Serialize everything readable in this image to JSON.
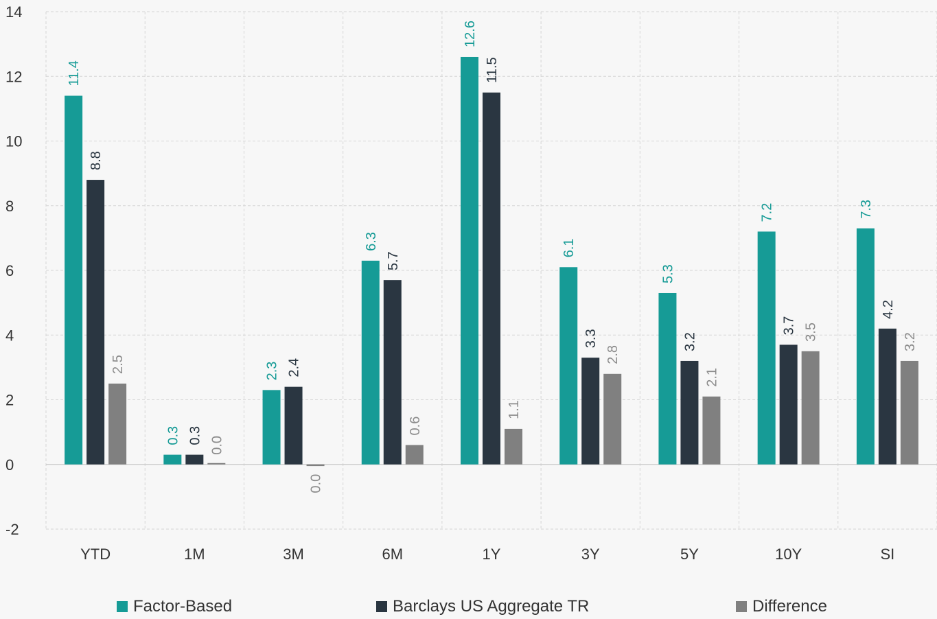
{
  "chart_data": {
    "type": "bar",
    "title": "",
    "xlabel": "",
    "ylabel": "",
    "ylim": [
      -2,
      14
    ],
    "yticks": [
      -2,
      0,
      2,
      4,
      6,
      8,
      10,
      12,
      14
    ],
    "grid": true,
    "legend_position": "bottom",
    "categories": [
      "YTD",
      "1M",
      "3M",
      "6M",
      "1Y",
      "3Y",
      "5Y",
      "10Y",
      "SI"
    ],
    "series": [
      {
        "name": "Factor-Based",
        "color": "#169b96",
        "label_color": "#169b96",
        "values": [
          11.4,
          0.3,
          2.3,
          6.3,
          12.6,
          6.1,
          5.3,
          7.2,
          7.3
        ],
        "labels": [
          "11.4",
          "0.3",
          "2.3",
          "6.3",
          "12.6",
          "6.1",
          "5.3",
          "7.2",
          "7.3"
        ]
      },
      {
        "name": "Barclays US Aggregate TR",
        "color": "#2a3641",
        "label_color": "#2a3641",
        "values": [
          8.8,
          0.3,
          2.4,
          5.7,
          11.5,
          3.3,
          3.2,
          3.7,
          4.2
        ],
        "labels": [
          "8.8",
          "0.3",
          "2.4",
          "5.7",
          "11.5",
          "3.3",
          "3.2",
          "3.7",
          "4.2"
        ]
      },
      {
        "name": "Difference",
        "color": "#808080",
        "label_color": "#8c8c8c",
        "values": [
          2.5,
          0.0,
          -0.05,
          0.6,
          1.1,
          2.8,
          2.1,
          3.5,
          3.2
        ],
        "labels": [
          "2.5",
          "0.0",
          "0.0",
          "0.6",
          "1.1",
          "2.8",
          "2.1",
          "3.5",
          "3.2"
        ]
      }
    ]
  }
}
